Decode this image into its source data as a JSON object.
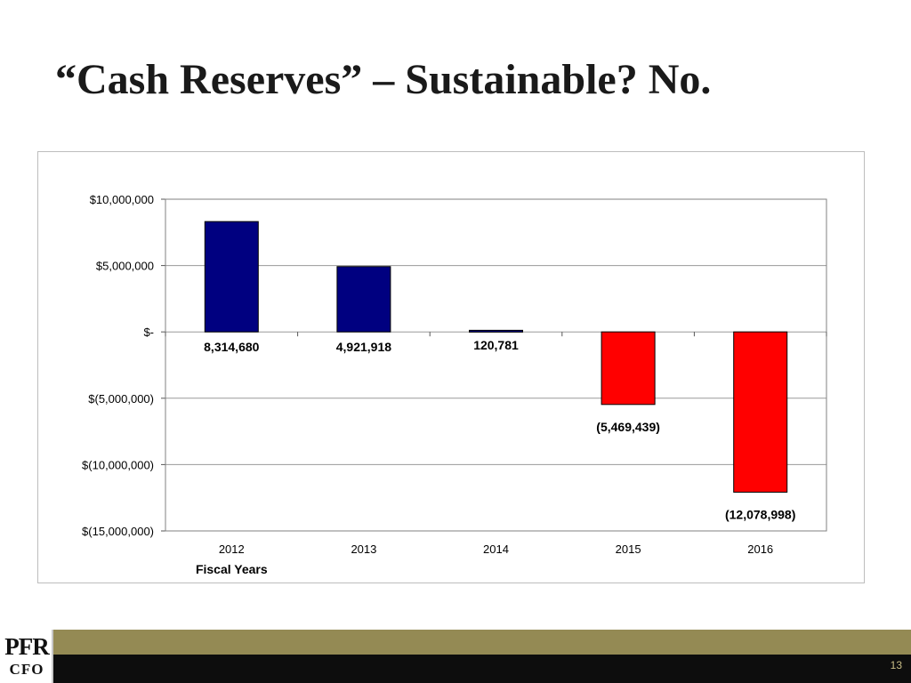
{
  "slide": {
    "title": "“Cash Reserves” – Sustainable?  No.",
    "page_number": "13",
    "logo_top": "PFR",
    "logo_bottom": "CFO"
  },
  "colors": {
    "positive": "#000080",
    "negative": "#ff0000",
    "footer_band": "#948a54",
    "footer_bar": "#0d0d0d"
  },
  "chart_data": {
    "type": "bar",
    "title": "",
    "xlabel": "Fiscal Years",
    "ylabel": "",
    "ylim": [
      -15000000,
      10000000
    ],
    "yticks": [
      10000000,
      5000000,
      0,
      -5000000,
      -10000000,
      -15000000
    ],
    "ytick_labels": [
      "$10,000,000",
      "$5,000,000",
      "$-",
      "$(5,000,000)",
      "$(10,000,000)",
      "$(15,000,000)"
    ],
    "categories": [
      "2012",
      "2013",
      "2014",
      "2015",
      "2016"
    ],
    "values": [
      8314680,
      4921918,
      120781,
      -5469439,
      -12078998
    ],
    "data_labels": [
      "8,314,680",
      "4,921,918",
      "120,781",
      "(5,469,439)",
      "(12,078,998)"
    ],
    "grid": true,
    "legend": "none"
  }
}
